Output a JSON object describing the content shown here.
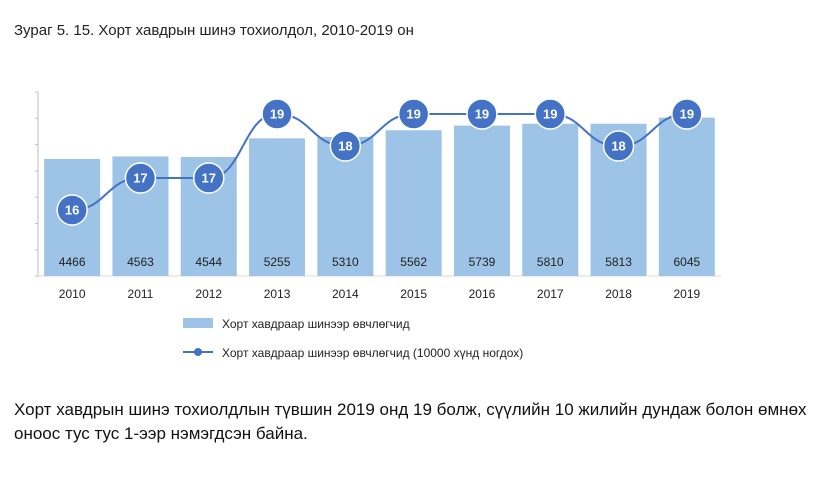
{
  "figure": {
    "title": "Зураг 5. 15. Хорт хавдрын шинэ тохиолдол, 2010-2019 он"
  },
  "chart_data": {
    "type": "bar",
    "title": "Зураг 5. 15. Хорт хавдрын шинэ тохиолдол, 2010-2019 он",
    "categories": [
      "2010",
      "2011",
      "2012",
      "2013",
      "2014",
      "2015",
      "2016",
      "2017",
      "2018",
      "2019"
    ],
    "series": [
      {
        "name": "Хорт хавдраар шинээр өвчлөгчид",
        "type": "bar",
        "values": [
          4466,
          4563,
          4544,
          5255,
          5310,
          5562,
          5739,
          5810,
          5813,
          6045
        ],
        "color": "#9dc3e6"
      },
      {
        "name": "Хорт хавдраар шинээр өвчлөгчид (10000 хүнд ногдох)",
        "type": "line",
        "values": [
          16,
          17,
          17,
          19,
          18,
          19,
          19,
          19,
          18,
          19
        ],
        "color": "#4472c4"
      }
    ],
    "legend": "bottom-left",
    "grid": false
  },
  "caption": {
    "text": "Хорт хавдрын шинэ тохиолдлын түвшин 2019 онд 19 болж, сүүлийн 10 жилийн дундаж болон өмнөх оноос тус тус 1-ээр нэмэгдсэн байна."
  }
}
